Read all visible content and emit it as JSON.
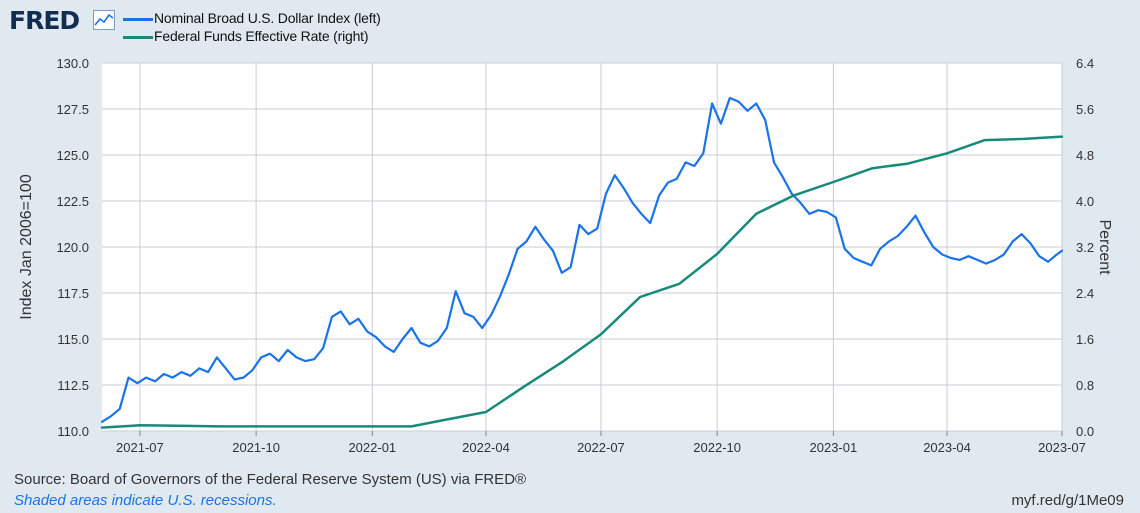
{
  "header": {
    "logo_text": "FRED",
    "logo_icon": "chart-line-icon"
  },
  "legend": [
    {
      "label": "Nominal Broad U.S. Dollar Index (left)",
      "color": "#1a73e8"
    },
    {
      "label": "Federal Funds Effective Rate (right)",
      "color": "#188a7a"
    }
  ],
  "footer": {
    "source": "Source: Board of Governors of the Federal Reserve System (US) via FRED®",
    "note": "Shaded areas indicate U.S. recessions.",
    "url": "myf.red/g/1Me09"
  },
  "chart_data": {
    "type": "line",
    "ylabel_left": "Index Jan 2006=100",
    "ylabel_right": "Percent",
    "ylim_left": [
      110.0,
      130.0
    ],
    "ylim_right": [
      0.0,
      6.4
    ],
    "yticks_left": [
      "110.0",
      "112.5",
      "115.0",
      "117.5",
      "120.0",
      "122.5",
      "125.0",
      "127.5",
      "130.0"
    ],
    "yticks_right": [
      "0.0",
      "0.8",
      "1.6",
      "2.4",
      "3.2",
      "4.0",
      "4.8",
      "5.6",
      "6.4"
    ],
    "x_range": [
      "2021-06-01",
      "2023-07-01"
    ],
    "x_ticks": [
      "2021-07",
      "2021-10",
      "2022-01",
      "2022-04",
      "2022-07",
      "2022-10",
      "2023-01",
      "2023-04",
      "2023-07"
    ],
    "grid": true,
    "series": [
      {
        "name": "Nominal Broad U.S. Dollar Index (left)",
        "axis": "left",
        "color": "#1a73e8",
        "points": [
          [
            "2021-06-01",
            110.5
          ],
          [
            "2021-06-08",
            110.8
          ],
          [
            "2021-06-15",
            111.2
          ],
          [
            "2021-06-22",
            112.9
          ],
          [
            "2021-06-29",
            112.6
          ],
          [
            "2021-07-06",
            112.9
          ],
          [
            "2021-07-13",
            112.7
          ],
          [
            "2021-07-20",
            113.1
          ],
          [
            "2021-07-27",
            112.9
          ],
          [
            "2021-08-03",
            113.2
          ],
          [
            "2021-08-10",
            113.0
          ],
          [
            "2021-08-17",
            113.4
          ],
          [
            "2021-08-24",
            113.2
          ],
          [
            "2021-08-31",
            114.0
          ],
          [
            "2021-09-07",
            113.4
          ],
          [
            "2021-09-14",
            112.8
          ],
          [
            "2021-09-21",
            112.9
          ],
          [
            "2021-09-28",
            113.3
          ],
          [
            "2021-10-05",
            114.0
          ],
          [
            "2021-10-12",
            114.2
          ],
          [
            "2021-10-19",
            113.8
          ],
          [
            "2021-10-26",
            114.4
          ],
          [
            "2021-11-02",
            114.0
          ],
          [
            "2021-11-09",
            113.8
          ],
          [
            "2021-11-16",
            113.9
          ],
          [
            "2021-11-23",
            114.5
          ],
          [
            "2021-11-30",
            116.2
          ],
          [
            "2021-12-07",
            116.5
          ],
          [
            "2021-12-14",
            115.8
          ],
          [
            "2021-12-21",
            116.1
          ],
          [
            "2021-12-28",
            115.4
          ],
          [
            "2022-01-04",
            115.1
          ],
          [
            "2022-01-11",
            114.6
          ],
          [
            "2022-01-18",
            114.3
          ],
          [
            "2022-01-25",
            115.0
          ],
          [
            "2022-02-01",
            115.6
          ],
          [
            "2022-02-08",
            114.8
          ],
          [
            "2022-02-15",
            114.6
          ],
          [
            "2022-02-22",
            114.9
          ],
          [
            "2022-03-01",
            115.6
          ],
          [
            "2022-03-08",
            117.6
          ],
          [
            "2022-03-15",
            116.4
          ],
          [
            "2022-03-22",
            116.2
          ],
          [
            "2022-03-29",
            115.6
          ],
          [
            "2022-04-05",
            116.3
          ],
          [
            "2022-04-12",
            117.3
          ],
          [
            "2022-04-19",
            118.5
          ],
          [
            "2022-04-26",
            119.9
          ],
          [
            "2022-05-03",
            120.3
          ],
          [
            "2022-05-10",
            121.1
          ],
          [
            "2022-05-17",
            120.4
          ],
          [
            "2022-05-24",
            119.8
          ],
          [
            "2022-05-31",
            118.6
          ],
          [
            "2022-06-07",
            118.9
          ],
          [
            "2022-06-14",
            121.2
          ],
          [
            "2022-06-21",
            120.7
          ],
          [
            "2022-06-28",
            121.0
          ],
          [
            "2022-07-05",
            122.9
          ],
          [
            "2022-07-12",
            123.9
          ],
          [
            "2022-07-19",
            123.2
          ],
          [
            "2022-07-26",
            122.4
          ],
          [
            "2022-08-02",
            121.8
          ],
          [
            "2022-08-09",
            121.3
          ],
          [
            "2022-08-16",
            122.8
          ],
          [
            "2022-08-23",
            123.5
          ],
          [
            "2022-08-30",
            123.7
          ],
          [
            "2022-09-06",
            124.6
          ],
          [
            "2022-09-13",
            124.4
          ],
          [
            "2022-09-20",
            125.1
          ],
          [
            "2022-09-27",
            127.8
          ],
          [
            "2022-10-04",
            126.7
          ],
          [
            "2022-10-11",
            128.1
          ],
          [
            "2022-10-18",
            127.9
          ],
          [
            "2022-10-25",
            127.4
          ],
          [
            "2022-11-01",
            127.8
          ],
          [
            "2022-11-08",
            126.9
          ],
          [
            "2022-11-15",
            124.6
          ],
          [
            "2022-11-22",
            123.8
          ],
          [
            "2022-11-29",
            122.9
          ],
          [
            "2022-12-06",
            122.4
          ],
          [
            "2022-12-13",
            121.8
          ],
          [
            "2022-12-20",
            122.0
          ],
          [
            "2022-12-27",
            121.9
          ],
          [
            "2023-01-03",
            121.6
          ],
          [
            "2023-01-10",
            119.9
          ],
          [
            "2023-01-17",
            119.4
          ],
          [
            "2023-01-24",
            119.2
          ],
          [
            "2023-01-31",
            119.0
          ],
          [
            "2023-02-07",
            119.9
          ],
          [
            "2023-02-14",
            120.3
          ],
          [
            "2023-02-21",
            120.6
          ],
          [
            "2023-02-28",
            121.1
          ],
          [
            "2023-03-07",
            121.7
          ],
          [
            "2023-03-14",
            120.8
          ],
          [
            "2023-03-21",
            120.0
          ],
          [
            "2023-03-28",
            119.6
          ],
          [
            "2023-04-04",
            119.4
          ],
          [
            "2023-04-11",
            119.3
          ],
          [
            "2023-04-18",
            119.5
          ],
          [
            "2023-04-25",
            119.3
          ],
          [
            "2023-05-02",
            119.1
          ],
          [
            "2023-05-09",
            119.3
          ],
          [
            "2023-05-16",
            119.6
          ],
          [
            "2023-05-23",
            120.3
          ],
          [
            "2023-05-30",
            120.7
          ],
          [
            "2023-06-06",
            120.2
          ],
          [
            "2023-06-13",
            119.5
          ],
          [
            "2023-06-20",
            119.2
          ],
          [
            "2023-06-27",
            119.6
          ],
          [
            "2023-07-01",
            119.8
          ]
        ]
      },
      {
        "name": "Federal Funds Effective Rate (right)",
        "axis": "right",
        "color": "#188a7a",
        "points": [
          [
            "2021-06-01",
            0.06
          ],
          [
            "2021-07-01",
            0.1
          ],
          [
            "2021-08-01",
            0.09
          ],
          [
            "2021-09-01",
            0.08
          ],
          [
            "2021-10-01",
            0.08
          ],
          [
            "2021-11-01",
            0.08
          ],
          [
            "2021-12-01",
            0.08
          ],
          [
            "2022-01-01",
            0.08
          ],
          [
            "2022-02-01",
            0.08
          ],
          [
            "2022-03-01",
            0.2
          ],
          [
            "2022-04-01",
            0.33
          ],
          [
            "2022-05-01",
            0.77
          ],
          [
            "2022-06-01",
            1.21
          ],
          [
            "2022-07-01",
            1.68
          ],
          [
            "2022-08-01",
            2.33
          ],
          [
            "2022-09-01",
            2.56
          ],
          [
            "2022-10-01",
            3.08
          ],
          [
            "2022-11-01",
            3.78
          ],
          [
            "2022-12-01",
            4.1
          ],
          [
            "2023-01-01",
            4.33
          ],
          [
            "2023-02-01",
            4.57
          ],
          [
            "2023-03-01",
            4.65
          ],
          [
            "2023-04-01",
            4.83
          ],
          [
            "2023-05-01",
            5.06
          ],
          [
            "2023-06-01",
            5.08
          ],
          [
            "2023-07-01",
            5.12
          ]
        ]
      }
    ]
  }
}
